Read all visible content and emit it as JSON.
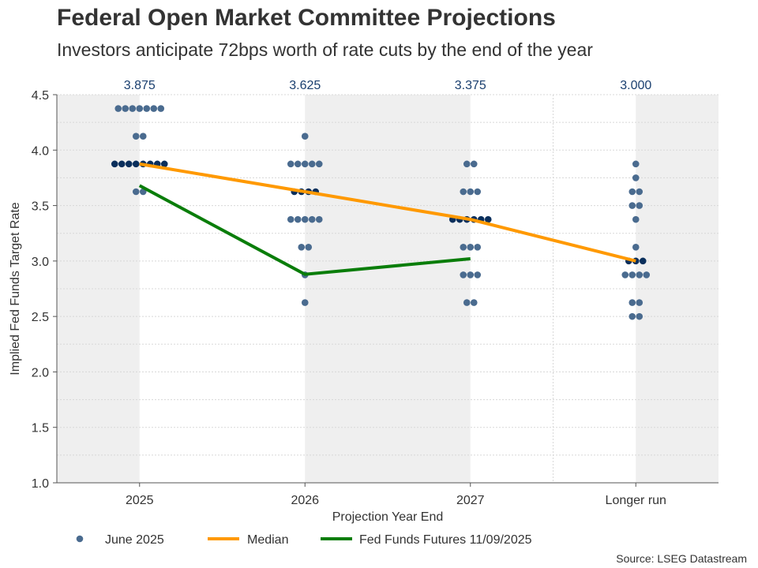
{
  "title": "Federal Open Market Committee Projections",
  "subtitle": "Investors anticipate 72bps worth of rate cuts by the end of the year",
  "source": "Source: LSEG Datastream",
  "chart_data": {
    "type": "scatter",
    "xlabel": "Projection Year End",
    "ylabel": "Implied Fed Funds Target Rate",
    "ylim": [
      1.0,
      4.5
    ],
    "yticks": [
      "1.0",
      "1.5",
      "2.0",
      "2.5",
      "3.0",
      "3.5",
      "4.0",
      "4.5"
    ],
    "categories": [
      "2025",
      "2026",
      "2027",
      "Longer run"
    ],
    "median_labels": [
      "3.875",
      "3.625",
      "3.375",
      "3.000"
    ],
    "grid": true,
    "legend_position": "bottom",
    "colors": {
      "dots": "#4a6b8f",
      "median_dots": "#0a2f5c",
      "median": "#ff9900",
      "futures": "#0a7d0a",
      "shade": "#efefef",
      "label": "#1a3f6f"
    },
    "dots": [
      {
        "category": "2025",
        "values": [
          [
            4.375,
            7
          ],
          [
            4.125,
            2
          ],
          [
            3.875,
            8
          ],
          [
            3.625,
            2
          ]
        ]
      },
      {
        "category": "2026",
        "values": [
          [
            4.125,
            1
          ],
          [
            3.875,
            5
          ],
          [
            3.625,
            4
          ],
          [
            3.375,
            5
          ],
          [
            3.125,
            2
          ],
          [
            2.875,
            1
          ],
          [
            2.625,
            1
          ]
        ]
      },
      {
        "category": "2027",
        "values": [
          [
            3.875,
            2
          ],
          [
            3.625,
            3
          ],
          [
            3.375,
            6
          ],
          [
            3.125,
            3
          ],
          [
            2.875,
            3
          ],
          [
            2.625,
            2
          ]
        ]
      },
      {
        "category": "Longer run",
        "values": [
          [
            3.875,
            1
          ],
          [
            3.75,
            1
          ],
          [
            3.625,
            2
          ],
          [
            3.5,
            2
          ],
          [
            3.375,
            1
          ],
          [
            3.125,
            1
          ],
          [
            3.0,
            3
          ],
          [
            2.875,
            4
          ],
          [
            2.625,
            2
          ],
          [
            2.5,
            2
          ]
        ]
      }
    ],
    "series": [
      {
        "name": "June 2025",
        "kind": "dots"
      },
      {
        "name": "Median",
        "values": [
          3.875,
          3.625,
          3.375,
          3.0
        ]
      },
      {
        "name": "Fed Funds Futures 11/09/2025",
        "values": [
          3.68,
          2.88,
          3.02,
          null
        ]
      }
    ]
  }
}
